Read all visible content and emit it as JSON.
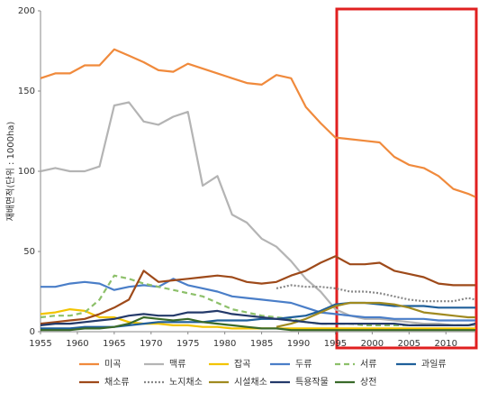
{
  "chart_data": {
    "type": "line",
    "y_label": "재배면적(단위 : 1000ha)",
    "x": [
      1955,
      1957,
      1959,
      1961,
      1963,
      1965,
      1967,
      1969,
      1971,
      1973,
      1975,
      1977,
      1979,
      1981,
      1983,
      1985,
      1987,
      1989,
      1991,
      1993,
      1995,
      1997,
      1999,
      2001,
      2003,
      2005,
      2007,
      2009,
      2011,
      2013,
      2014
    ],
    "xlim": [
      1955,
      2014
    ],
    "xticks": [
      1955,
      1960,
      1965,
      1970,
      1975,
      1980,
      1985,
      1990,
      1995,
      2000,
      2005,
      2010
    ],
    "ylim": [
      0,
      200
    ],
    "yticks": [
      0,
      50,
      100,
      150,
      200
    ],
    "grid": false,
    "series": [
      {
        "name": "미곡",
        "color": "#f08a3c",
        "values": [
          158,
          161,
          161,
          166,
          166,
          176,
          172,
          168,
          163,
          162,
          167,
          164,
          161,
          158,
          155,
          154,
          160,
          158,
          140,
          130,
          121,
          120,
          119,
          118,
          109,
          104,
          102,
          97,
          89,
          86,
          84
        ]
      },
      {
        "name": "맥류",
        "color": "#b4b4b4",
        "values": [
          100,
          102,
          100,
          100,
          103,
          141,
          143,
          131,
          129,
          134,
          137,
          91,
          97,
          73,
          68,
          58,
          53,
          44,
          33,
          25,
          14,
          10,
          8,
          8,
          7,
          6,
          5,
          5,
          4,
          4,
          4
        ]
      },
      {
        "name": "잡곡",
        "color": "#f2c400",
        "values": [
          11,
          12,
          14,
          13,
          9,
          9,
          6,
          5,
          5,
          4,
          4,
          3,
          3,
          2,
          2,
          2,
          2,
          2,
          2,
          2,
          2,
          2,
          2,
          2,
          2,
          2,
          2,
          2,
          2,
          2,
          2
        ]
      },
      {
        "name": "두류",
        "color": "#4a7ec8",
        "values": [
          28,
          28,
          30,
          31,
          30,
          26,
          28,
          29,
          28,
          33,
          29,
          27,
          25,
          22,
          21,
          20,
          19,
          18,
          15,
          12,
          11,
          10,
          9,
          9,
          8,
          8,
          8,
          7,
          7,
          7,
          7
        ]
      },
      {
        "name": "서류",
        "color": "#8dc06a",
        "dash": "6,4",
        "values": [
          9,
          10,
          10,
          12,
          20,
          35,
          33,
          30,
          28,
          26,
          24,
          22,
          18,
          14,
          12,
          10,
          9,
          8,
          6,
          5,
          5,
          5,
          4,
          4,
          4,
          4,
          4,
          4,
          4,
          4,
          4
        ]
      },
      {
        "name": "과일류",
        "color": "#1f5f9a",
        "values": [
          2,
          2,
          2,
          3,
          3,
          3,
          4,
          5,
          6,
          6,
          6,
          6,
          7,
          7,
          7,
          8,
          8,
          9,
          10,
          13,
          17,
          18,
          18,
          17,
          16,
          16,
          16,
          15,
          15,
          15,
          15
        ]
      },
      {
        "name": "채소류",
        "color": "#9e4a1a",
        "values": [
          5,
          6,
          7,
          8,
          11,
          15,
          20,
          38,
          31,
          32,
          33,
          34,
          35,
          34,
          31,
          30,
          31,
          35,
          38,
          43,
          47,
          42,
          42,
          43,
          38,
          36,
          34,
          30,
          29,
          29,
          29
        ]
      },
      {
        "name": "노지채소",
        "color": "#888888",
        "dash": "2,2",
        "values": [
          null,
          null,
          null,
          null,
          null,
          null,
          null,
          null,
          null,
          null,
          null,
          null,
          null,
          null,
          null,
          null,
          27,
          29,
          28,
          28,
          27,
          25,
          25,
          24,
          22,
          20,
          19,
          19,
          19,
          21,
          20
        ]
      },
      {
        "name": "시설채소",
        "color": "#a08a20",
        "values": [
          null,
          null,
          null,
          null,
          null,
          null,
          null,
          null,
          null,
          null,
          null,
          null,
          null,
          null,
          null,
          null,
          3,
          5,
          8,
          12,
          16,
          18,
          18,
          18,
          17,
          15,
          12,
          11,
          10,
          9,
          9
        ]
      },
      {
        "name": "특용작물",
        "color": "#243a6a",
        "values": [
          4,
          5,
          5,
          6,
          7,
          8,
          10,
          11,
          10,
          10,
          12,
          12,
          13,
          11,
          10,
          9,
          8,
          7,
          6,
          5,
          5,
          5,
          5,
          5,
          5,
          4,
          4,
          4,
          4,
          4,
          5
        ]
      },
      {
        "name": "상전",
        "color": "#3a6a2a",
        "values": [
          1,
          1,
          1,
          2,
          2,
          3,
          5,
          9,
          8,
          7,
          8,
          6,
          5,
          4,
          3,
          2,
          2,
          1,
          1,
          1,
          1,
          1,
          1,
          1,
          1,
          1,
          1,
          1,
          1,
          1,
          1
        ]
      }
    ]
  }
}
